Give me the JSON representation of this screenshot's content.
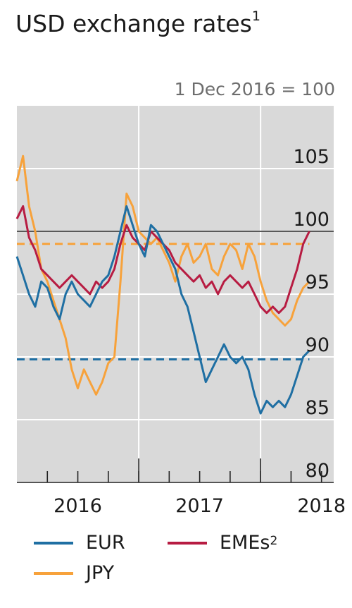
{
  "chart_data": {
    "type": "line",
    "title": "USD exchange rates",
    "title_footnote": "1",
    "subtitle": "1 Dec 2016 = 100",
    "ylim": [
      80,
      110
    ],
    "yticks": [
      105,
      100,
      95,
      90,
      85,
      80
    ],
    "ytick_labels": [
      "105",
      "100",
      "95",
      "90",
      "85",
      "80"
    ],
    "xlim": [
      2015.5,
      2018.1
    ],
    "year_labels": [
      {
        "label": "2016",
        "x": 2016.0
      },
      {
        "label": "2017",
        "x": 2017.0
      },
      {
        "label": "2018",
        "x": 2018.0
      }
    ],
    "year_dividers": [
      2016.5,
      2017.5
    ],
    "quarter_ticks": [
      2015.75,
      2016.0,
      2016.25,
      2016.5,
      2016.75,
      2017.0,
      2017.25,
      2017.5,
      2017.75,
      2018.0
    ],
    "reference_line": 100,
    "grid": true,
    "background": "#d9d9d9",
    "series": [
      {
        "name": "EUR",
        "color": "#1f6fa3",
        "x": [
          2015.5,
          2015.55,
          2015.6,
          2015.65,
          2015.7,
          2015.75,
          2015.8,
          2015.85,
          2015.9,
          2015.95,
          2016.0,
          2016.05,
          2016.1,
          2016.15,
          2016.2,
          2016.25,
          2016.3,
          2016.35,
          2016.4,
          2016.45,
          2016.5,
          2016.55,
          2016.6,
          2016.65,
          2016.7,
          2016.75,
          2016.8,
          2016.85,
          2016.9,
          2016.95,
          2017.0,
          2017.05,
          2017.1,
          2017.15,
          2017.2,
          2017.25,
          2017.3,
          2017.35,
          2017.4,
          2017.45,
          2017.5,
          2017.55,
          2017.6,
          2017.65,
          2017.7,
          2017.75,
          2017.8,
          2017.85,
          2017.9
        ],
        "values": [
          98.0,
          96.5,
          95.0,
          94.0,
          96.0,
          95.5,
          94.0,
          93.0,
          95.0,
          96.0,
          95.0,
          94.5,
          94.0,
          95.0,
          96.0,
          96.5,
          98.0,
          100.0,
          102.0,
          100.5,
          99.0,
          98.0,
          100.5,
          100.0,
          99.0,
          98.0,
          97.0,
          95.0,
          94.0,
          92.0,
          90.0,
          88.0,
          89.0,
          90.0,
          91.0,
          90.0,
          89.5,
          90.0,
          89.0,
          87.0,
          85.5,
          86.5,
          86.0,
          86.5,
          86.0,
          87.0,
          88.5,
          90.0,
          90.5
        ]
      },
      {
        "name": "JPY",
        "color": "#f7a23b",
        "x": [
          2015.5,
          2015.55,
          2015.6,
          2015.65,
          2015.7,
          2015.75,
          2015.8,
          2015.85,
          2015.9,
          2015.95,
          2016.0,
          2016.05,
          2016.1,
          2016.15,
          2016.2,
          2016.25,
          2016.3,
          2016.35,
          2016.4,
          2016.45,
          2016.5,
          2016.55,
          2016.6,
          2016.65,
          2016.7,
          2016.75,
          2016.8,
          2016.85,
          2016.9,
          2016.95,
          2017.0,
          2017.05,
          2017.1,
          2017.15,
          2017.2,
          2017.25,
          2017.3,
          2017.35,
          2017.4,
          2017.45,
          2017.5,
          2017.55,
          2017.6,
          2017.65,
          2017.7,
          2017.75,
          2017.8,
          2017.85,
          2017.9
        ],
        "values": [
          104.0,
          106.0,
          102.0,
          100.0,
          97.0,
          96.0,
          94.5,
          93.0,
          91.5,
          89.0,
          87.5,
          89.0,
          88.0,
          87.0,
          88.0,
          89.5,
          90.0,
          96.0,
          103.0,
          102.0,
          100.0,
          99.5,
          99.0,
          99.5,
          98.5,
          97.5,
          96.0,
          98.0,
          99.0,
          97.5,
          98.0,
          99.0,
          97.0,
          96.5,
          98.0,
          99.0,
          98.5,
          97.0,
          99.0,
          98.0,
          96.0,
          94.5,
          93.5,
          93.0,
          92.5,
          93.0,
          94.5,
          95.5,
          96.0
        ]
      },
      {
        "name": "EMEs",
        "name_footnote": "2",
        "color": "#b71c42",
        "x": [
          2015.5,
          2015.55,
          2015.6,
          2015.65,
          2015.7,
          2015.75,
          2015.8,
          2015.85,
          2015.9,
          2015.95,
          2016.0,
          2016.05,
          2016.1,
          2016.15,
          2016.2,
          2016.25,
          2016.3,
          2016.35,
          2016.4,
          2016.45,
          2016.5,
          2016.55,
          2016.6,
          2016.65,
          2016.7,
          2016.75,
          2016.8,
          2016.85,
          2016.9,
          2016.95,
          2017.0,
          2017.05,
          2017.1,
          2017.15,
          2017.2,
          2017.25,
          2017.3,
          2017.35,
          2017.4,
          2017.45,
          2017.5,
          2017.55,
          2017.6,
          2017.65,
          2017.7,
          2017.75,
          2017.8,
          2017.85,
          2017.9
        ],
        "values": [
          101.0,
          102.0,
          99.5,
          98.5,
          97.0,
          96.5,
          96.0,
          95.5,
          96.0,
          96.5,
          96.0,
          95.5,
          95.0,
          96.0,
          95.5,
          96.0,
          97.0,
          99.0,
          100.5,
          99.5,
          99.0,
          98.5,
          100.0,
          99.5,
          99.0,
          98.5,
          97.5,
          97.0,
          96.5,
          96.0,
          96.5,
          95.5,
          96.0,
          95.0,
          96.0,
          96.5,
          96.0,
          95.5,
          96.0,
          95.0,
          94.0,
          93.5,
          94.0,
          93.5,
          94.0,
          95.5,
          97.0,
          99.0,
          100.0
        ]
      }
    ],
    "dashed_lines": [
      {
        "series": "JPY",
        "value": 99.0,
        "x_start": 2015.5,
        "x_end": 2017.9
      },
      {
        "series": "EUR",
        "value": 89.8,
        "x_start": 2015.5,
        "x_end": 2017.9
      }
    ]
  },
  "legend": {
    "items": [
      {
        "name": "EUR",
        "color": "#1f6fa3",
        "footnote": ""
      },
      {
        "name": "EMEs",
        "color": "#b71c42",
        "footnote": "2"
      },
      {
        "name": "JPY",
        "color": "#f7a23b",
        "footnote": ""
      }
    ]
  }
}
